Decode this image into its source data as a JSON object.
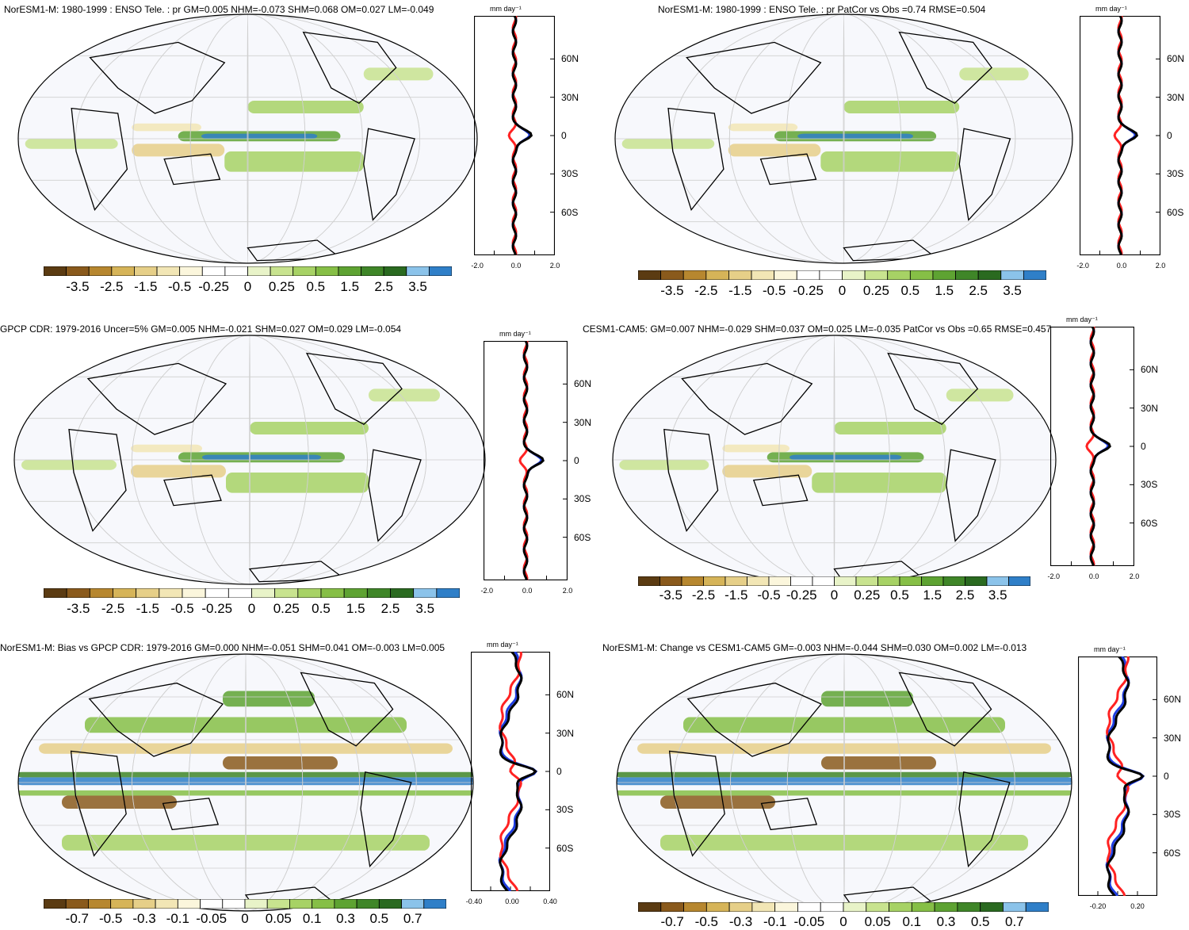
{
  "panels": [
    {
      "title": "NorESM1-M: 1980-1999 : ENSO Tele. : pr GM=0.005 NHM=-0.073 SHM=0.068 OM=0.027 LM=-0.049",
      "colorbar_labels": [
        "-3.5",
        "-2.5",
        "-1.5",
        "-0.5",
        "-0.25",
        "0",
        "0.25",
        "0.5",
        "1.5",
        "2.5",
        "3.5"
      ],
      "profile": {
        "unit": "mm day⁻¹",
        "lat_labels": [
          "60N",
          "30N",
          "0",
          "30S",
          "60S"
        ],
        "x_labels": [
          "-2.0",
          "0.0",
          "2.0"
        ]
      }
    },
    {
      "title": "NorESM1-M: 1980-1999 : ENSO Tele. : pr PatCor vs Obs =0.74 RMSE=0.504",
      "colorbar_labels": [
        "-3.5",
        "-2.5",
        "-1.5",
        "-0.5",
        "-0.25",
        "0",
        "0.25",
        "0.5",
        "1.5",
        "2.5",
        "3.5"
      ],
      "profile": {
        "unit": "mm day⁻¹",
        "lat_labels": [
          "60N",
          "30N",
          "0",
          "30S",
          "60S"
        ],
        "x_labels": [
          "-2.0",
          "0.0",
          "2.0"
        ]
      }
    },
    {
      "title": "GPCP CDR: 1979-2016 Uncer=5% GM=0.005 NHM=-0.021 SHM=0.027 OM=0.029 LM=-0.054",
      "colorbar_labels": [
        "-3.5",
        "-2.5",
        "-1.5",
        "-0.5",
        "-0.25",
        "0",
        "0.25",
        "0.5",
        "1.5",
        "2.5",
        "3.5"
      ],
      "profile": {
        "unit": "mm day⁻¹",
        "lat_labels": [
          "60N",
          "30N",
          "0",
          "30S",
          "60S"
        ],
        "x_labels": [
          "-2.0",
          "0.0",
          "2.0"
        ]
      }
    },
    {
      "title": "CESM1-CAM5: GM=0.007 NHM=-0.029 SHM=0.037 OM=0.025 LM=-0.035 PatCor vs Obs =0.65 RMSE=0.457",
      "colorbar_labels": [
        "-3.5",
        "-2.5",
        "-1.5",
        "-0.5",
        "-0.25",
        "0",
        "0.25",
        "0.5",
        "1.5",
        "2.5",
        "3.5"
      ],
      "profile": {
        "unit": "mm day⁻¹",
        "lat_labels": [
          "60N",
          "30N",
          "0",
          "30S",
          "60S"
        ],
        "x_labels": [
          "-2.0",
          "0.0",
          "2.0"
        ]
      }
    },
    {
      "title": "NorESM1-M: Bias vs GPCP CDR: 1979-2016 GM=0.000 NHM=-0.051 SHM=0.041 OM=-0.003 LM=0.005",
      "colorbar_labels": [
        "-0.7",
        "-0.5",
        "-0.3",
        "-0.1",
        "-0.05",
        "0",
        "0.05",
        "0.1",
        "0.3",
        "0.5",
        "0.7"
      ],
      "profile": {
        "unit": "mm day⁻¹",
        "lat_labels": [
          "60N",
          "30N",
          "0",
          "30S",
          "60S"
        ],
        "x_labels": [
          "-0.40",
          "0.00",
          "0.40"
        ]
      }
    },
    {
      "title": "NorESM1-M: Change vs CESM1-CAM5 GM=-0.003 NHM=-0.044 SHM=0.030 OM=0.002 LM=-0.013",
      "colorbar_labels": [
        "-0.7",
        "-0.5",
        "-0.3",
        "-0.1",
        "-0.05",
        "0",
        "0.05",
        "0.1",
        "0.3",
        "0.5",
        "0.7"
      ],
      "profile": {
        "unit": "mm day⁻¹",
        "lat_labels": [
          "60N",
          "30N",
          "0",
          "30S",
          "60S"
        ],
        "x_labels": [
          "-0.20",
          "0.20"
        ]
      }
    }
  ],
  "colors": {
    "palette": [
      "#5b3b12",
      "#8a5a1c",
      "#b7872f",
      "#d6b458",
      "#e6cf88",
      "#f2e6b5",
      "#fbf6dc",
      "#ffffff",
      "#ffffff",
      "#e8f3c8",
      "#c8e38f",
      "#a7d265",
      "#86bf46",
      "#5ea332",
      "#3f8628",
      "#2a6a20",
      "#8bc3ea",
      "#2f7fc8"
    ],
    "ocean": "#f7f8fc",
    "profile_red": "#ff2222",
    "profile_blue": "#1f3de0",
    "profile_black": "#000000"
  }
}
